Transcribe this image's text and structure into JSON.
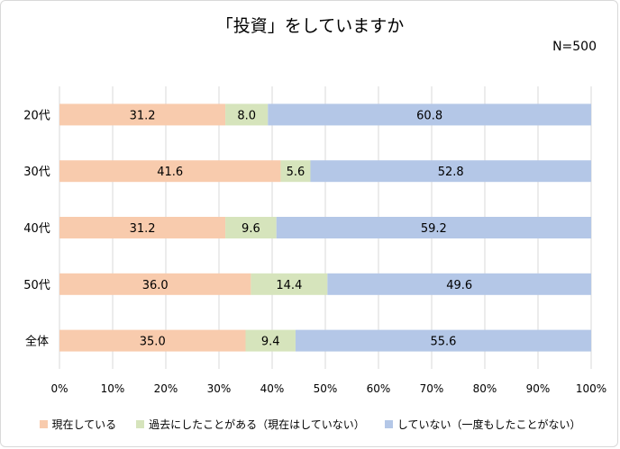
{
  "chart_data": {
    "type": "bar",
    "orientation": "horizontal",
    "stacked": true,
    "title": "「投資」をしていますか",
    "note": "N=500",
    "categories": [
      "20代",
      "30代",
      "40代",
      "50代",
      "全体"
    ],
    "series": [
      {
        "name": "現在している",
        "color": "#f8cbad",
        "values": [
          31.2,
          41.6,
          31.2,
          36.0,
          35.0
        ]
      },
      {
        "name": "過去にしたことがある（現在はしていない）",
        "color": "#d6e4bc",
        "values": [
          8.0,
          5.6,
          9.6,
          14.4,
          9.4
        ]
      },
      {
        "name": "していない（一度もしたことがない）",
        "color": "#b4c7e7",
        "values": [
          60.8,
          52.8,
          59.2,
          49.6,
          55.6
        ]
      }
    ],
    "value_labels": [
      [
        "31.2",
        "8.0",
        "60.8"
      ],
      [
        "41.6",
        "5.6",
        "52.8"
      ],
      [
        "31.2",
        "9.6",
        "59.2"
      ],
      [
        "36.0",
        "14.4",
        "49.6"
      ],
      [
        "35.0",
        "9.4",
        "55.6"
      ]
    ],
    "xlim": [
      0,
      100
    ],
    "x_ticks": [
      "0%",
      "10%",
      "20%",
      "30%",
      "40%",
      "50%",
      "60%",
      "70%",
      "80%",
      "90%",
      "100%"
    ],
    "grid": true,
    "legend_position": "bottom"
  }
}
